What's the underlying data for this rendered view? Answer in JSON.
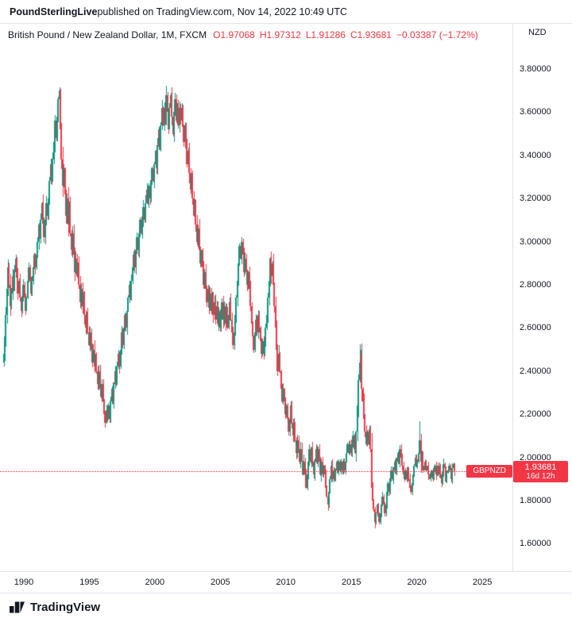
{
  "header": {
    "publisher": "PoundSterlingLive",
    "suffix": " published on TradingView.com, Nov 14, 2022 10:49 UTC"
  },
  "title": {
    "pair": "British Pound / New Zealand Dollar, 1M, FXCM",
    "o": "O1.97068",
    "h": "H1.97312",
    "l": "L1.91286",
    "c": "C1.93681",
    "change": "−0.03387 (−1.72%)"
  },
  "axis": {
    "currency": "NZD",
    "price_ticks": [
      "3.80000",
      "3.60000",
      "3.40000",
      "3.20000",
      "3.00000",
      "2.80000",
      "2.60000",
      "2.40000",
      "2.20000",
      "2.00000",
      "1.80000",
      "1.60000"
    ],
    "time_ticks": [
      "1990",
      "1995",
      "2000",
      "2005",
      "2010",
      "2015",
      "2020",
      "2025"
    ]
  },
  "price_label": {
    "symbol": "GBPNZD",
    "value": "1.93681",
    "countdown": "16d 12h"
  },
  "footer": {
    "brand": "TradingView"
  },
  "chart_data": {
    "type": "candlestick",
    "title": "British Pound / New Zealand Dollar",
    "interval": "1M",
    "exchange": "FXCM",
    "quote_currency": "NZD",
    "grid": false,
    "ylim_visible": [
      1.47,
      4.01
    ],
    "price_tick_step": 0.2,
    "x_tick_years": [
      1990,
      1995,
      2000,
      2005,
      2010,
      2015,
      2020,
      2025
    ],
    "current_price": 1.93681,
    "last_candle": {
      "open": 1.97068,
      "high": 1.97312,
      "low": 1.91286,
      "close": 1.93681,
      "change": -0.03387,
      "change_pct": -1.72
    },
    "countdown": "16d 12h",
    "colors": {
      "up": "#089981",
      "down": "#f23645",
      "line": "#f23645"
    },
    "start": "1988-06",
    "first_open": 2.44,
    "close": [
      2.48,
      2.56,
      2.66,
      2.78,
      2.88,
      2.8,
      2.7,
      2.76,
      2.84,
      2.78,
      2.86,
      2.92,
      2.84,
      2.76,
      2.82,
      2.74,
      2.68,
      2.74,
      2.8,
      2.74,
      2.68,
      2.74,
      2.82,
      2.88,
      2.82,
      2.76,
      2.82,
      2.88,
      2.94,
      2.88,
      2.94,
      3.0,
      3.08,
      3.02,
      3.1,
      3.18,
      3.1,
      3.02,
      3.1,
      3.18,
      3.12,
      3.2,
      3.28,
      3.36,
      3.28,
      3.38,
      3.46,
      3.56,
      3.48,
      3.58,
      3.66,
      3.7,
      3.52,
      3.38,
      3.26,
      3.34,
      3.22,
      3.12,
      3.2,
      3.08,
      3.16,
      3.04,
      2.96,
      3.04,
      2.94,
      2.86,
      2.92,
      2.84,
      2.9,
      2.8,
      2.72,
      2.78,
      2.7,
      2.76,
      2.66,
      2.6,
      2.66,
      2.58,
      2.52,
      2.58,
      2.5,
      2.44,
      2.5,
      2.42,
      2.48,
      2.4,
      2.34,
      2.4,
      2.32,
      2.28,
      2.34,
      2.26,
      2.2,
      2.16,
      2.22,
      2.18,
      2.24,
      2.18,
      2.26,
      2.32,
      2.26,
      2.34,
      2.4,
      2.34,
      2.42,
      2.48,
      2.42,
      2.5,
      2.58,
      2.52,
      2.6,
      2.66,
      2.6,
      2.68,
      2.74,
      2.8,
      2.74,
      2.82,
      2.88,
      2.94,
      2.88,
      2.96,
      3.02,
      2.96,
      3.04,
      3.1,
      3.04,
      3.1,
      3.16,
      3.1,
      3.18,
      3.24,
      3.18,
      3.26,
      3.2,
      3.28,
      3.34,
      3.28,
      3.36,
      3.42,
      3.34,
      3.44,
      3.52,
      3.44,
      3.54,
      3.62,
      3.54,
      3.62,
      3.56,
      3.68,
      3.6,
      3.52,
      3.62,
      3.68,
      3.58,
      3.5,
      3.6,
      3.66,
      3.56,
      3.64,
      3.54,
      3.62,
      3.56,
      3.62,
      3.54,
      3.46,
      3.54,
      3.44,
      3.36,
      3.42,
      3.32,
      3.24,
      3.3,
      3.2,
      3.12,
      3.18,
      3.08,
      3.0,
      3.06,
      2.96,
      2.9,
      2.96,
      2.88,
      2.8,
      2.86,
      2.78,
      2.72,
      2.78,
      2.7,
      2.76,
      2.68,
      2.74,
      2.66,
      2.72,
      2.64,
      2.7,
      2.62,
      2.68,
      2.6,
      2.66,
      2.72,
      2.64,
      2.7,
      2.62,
      2.68,
      2.6,
      2.66,
      2.72,
      2.64,
      2.58,
      2.52,
      2.58,
      2.66,
      2.74,
      2.82,
      2.9,
      2.98,
      2.92,
      3.0,
      2.94,
      2.86,
      2.92,
      2.86,
      2.8,
      2.86,
      2.78,
      2.7,
      2.62,
      2.56,
      2.5,
      2.58,
      2.64,
      2.58,
      2.66,
      2.6,
      2.54,
      2.48,
      2.54,
      2.48,
      2.54,
      2.6,
      2.66,
      2.74,
      2.82,
      2.92,
      2.84,
      2.9,
      2.8,
      2.7,
      2.6,
      2.5,
      2.4,
      2.48,
      2.4,
      2.32,
      2.26,
      2.32,
      2.26,
      2.2,
      2.24,
      2.18,
      2.12,
      2.18,
      2.24,
      2.16,
      2.1,
      2.16,
      2.08,
      2.02,
      2.08,
      2.02,
      1.98,
      2.04,
      1.98,
      1.92,
      1.98,
      1.92,
      1.86,
      1.92,
      1.98,
      2.04,
      1.98,
      2.04,
      1.98,
      1.92,
      1.98,
      2.04,
      1.98,
      2.04,
      1.98,
      1.92,
      1.98,
      1.92,
      1.96,
      1.92,
      1.86,
      1.82,
      1.78,
      1.84,
      1.9,
      1.96,
      1.9,
      1.94,
      1.9,
      1.94,
      1.98,
      1.94,
      1.98,
      1.94,
      1.98,
      1.94,
      1.98,
      1.94,
      1.98,
      2.02,
      2.06,
      2.02,
      2.06,
      2.02,
      2.06,
      2.1,
      2.04,
      2.02,
      2.12,
      2.24,
      2.36,
      2.44,
      2.48,
      2.32,
      2.26,
      2.18,
      2.12,
      2.06,
      2.12,
      2.06,
      2.12,
      2.04,
      1.86,
      1.8,
      1.76,
      1.7,
      1.74,
      1.78,
      1.74,
      1.7,
      1.74,
      1.78,
      1.82,
      1.78,
      1.74,
      1.78,
      1.84,
      1.88,
      1.84,
      1.9,
      1.94,
      1.9,
      1.94,
      1.98,
      1.94,
      1.98,
      2.02,
      1.98,
      2.04,
      2.0,
      1.96,
      1.92,
      1.9,
      1.94,
      1.9,
      1.94,
      1.9,
      1.86,
      1.84,
      1.88,
      1.92,
      1.96,
      2.0,
      1.96,
      1.98,
      2.02,
      2.08,
      1.98,
      2.02,
      1.94,
      1.96,
      1.98,
      1.94,
      1.96,
      1.92,
      1.9,
      1.92,
      1.94,
      1.9,
      1.94,
      1.96,
      1.92,
      1.96,
      1.92,
      1.96,
      1.92,
      1.88,
      1.92,
      1.97,
      1.95,
      1.89,
      1.93,
      1.94,
      1.96,
      1.94,
      1.9,
      1.95,
      1.97068,
      1.93681
    ],
    "wick_overrides": [
      {
        "i": 51,
        "high": 3.715
      },
      {
        "i": 149,
        "high": 3.722
      },
      {
        "i": 297,
        "low": 1.752
      },
      {
        "i": 326,
        "high": 2.525
      },
      {
        "i": 327,
        "high": 2.497
      },
      {
        "i": 340,
        "low": 1.672
      },
      {
        "i": 381,
        "high": 2.168
      },
      {
        "i": 413,
        "high": 1.97312,
        "low": 1.91286
      }
    ]
  }
}
